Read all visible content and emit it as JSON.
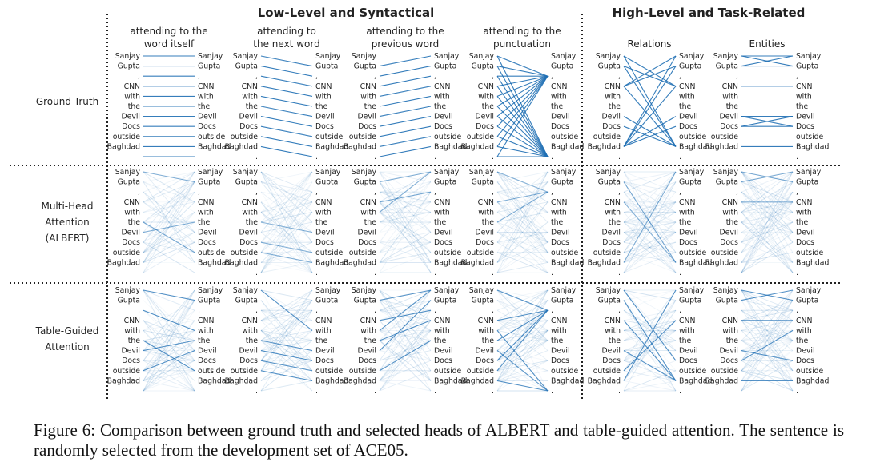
{
  "figure": {
    "group_titles": [
      "Low-Level and Syntactical",
      "High-Level and Task-Related"
    ],
    "columns": [
      {
        "id": "self",
        "title": [
          "attending to the",
          "word itself"
        ]
      },
      {
        "id": "next",
        "title": [
          "attending to",
          "the next word"
        ]
      },
      {
        "id": "prev",
        "title": [
          "attending to the",
          "previous word"
        ]
      },
      {
        "id": "punct",
        "title": [
          "attending to the",
          "punctuation"
        ]
      },
      {
        "id": "relations",
        "title": [
          "",
          "Relations"
        ]
      },
      {
        "id": "entities",
        "title": [
          "",
          "Entities"
        ]
      }
    ],
    "rows": [
      {
        "id": "ground-truth",
        "label": [
          "Ground Truth"
        ]
      },
      {
        "id": "multi-head",
        "label": [
          "Multi-Head",
          "Attention",
          "(ALBERT)"
        ]
      },
      {
        "id": "table-guided",
        "label": [
          "Table-Guided",
          "Attention"
        ]
      }
    ],
    "tokens": [
      "Sanjay",
      "Gupta",
      ",",
      "CNN",
      "with",
      "the",
      "Devil",
      "Docs",
      "outside",
      "Baghdad",
      "."
    ],
    "line_color": "#1f6fb4"
  },
  "caption": {
    "text": "Figure 6:  Comparison between ground truth and selected heads of ALBERT and table-guided attention.  The sentence is randomly selected from the development set of ACE05."
  }
}
